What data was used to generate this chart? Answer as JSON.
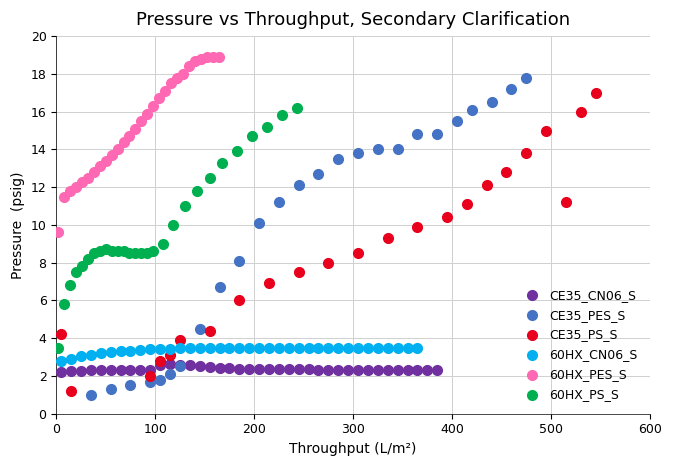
{
  "title": "Pressure vs Throughput, Secondary Clarification",
  "xlabel": "Throughput (L/m²)",
  "ylabel": "Pressure  (psig)",
  "xlim": [
    0,
    600
  ],
  "ylim": [
    0,
    20
  ],
  "xticks": [
    0,
    100,
    200,
    300,
    400,
    500,
    600
  ],
  "yticks": [
    0,
    2,
    4,
    6,
    8,
    10,
    12,
    14,
    16,
    18,
    20
  ],
  "series": {
    "CE35_CN06_S": {
      "color": "#7030A0",
      "x": [
        5,
        15,
        25,
        35,
        45,
        55,
        65,
        75,
        85,
        95,
        105,
        115,
        125,
        135,
        145,
        155,
        165,
        175,
        185,
        195,
        205,
        215,
        225,
        235,
        245,
        255,
        265,
        275,
        285,
        295,
        305,
        315,
        325,
        335,
        345,
        355,
        365,
        375,
        385
      ],
      "y": [
        2.2,
        2.25,
        2.25,
        2.3,
        2.3,
        2.3,
        2.3,
        2.3,
        2.3,
        2.3,
        2.6,
        2.65,
        2.6,
        2.55,
        2.5,
        2.45,
        2.4,
        2.4,
        2.35,
        2.35,
        2.35,
        2.35,
        2.35,
        2.35,
        2.35,
        2.35,
        2.3,
        2.3,
        2.3,
        2.3,
        2.3,
        2.3,
        2.3,
        2.3,
        2.3,
        2.3,
        2.3,
        2.3,
        2.3
      ]
    },
    "CE35_PES_S": {
      "color": "#4472C4",
      "x": [
        35,
        55,
        75,
        95,
        105,
        115,
        125,
        145,
        165,
        185,
        205,
        225,
        245,
        265,
        285,
        305,
        325,
        345,
        365,
        385,
        405,
        420,
        440,
        460,
        475
      ],
      "y": [
        1.0,
        1.3,
        1.5,
        1.7,
        1.8,
        2.1,
        2.5,
        4.5,
        6.7,
        8.1,
        10.1,
        11.2,
        12.1,
        12.7,
        13.5,
        13.8,
        14.0,
        14.0,
        14.8,
        14.8,
        15.5,
        16.1,
        16.5,
        17.2,
        17.8
      ]
    },
    "CE35_PS_S": {
      "color": "#E8001C",
      "x": [
        5,
        15,
        95,
        105,
        115,
        125,
        155,
        185,
        215,
        245,
        275,
        305,
        335,
        365,
        395,
        415,
        435,
        455,
        475,
        495,
        515,
        530,
        545
      ],
      "y": [
        4.2,
        1.2,
        2.0,
        2.8,
        3.1,
        3.9,
        4.4,
        6.0,
        6.9,
        7.5,
        8.0,
        8.5,
        9.3,
        9.9,
        10.4,
        11.1,
        12.1,
        12.8,
        13.8,
        15.0,
        11.2,
        16.0,
        17.0
      ]
    },
    "60HX_CN06_S": {
      "color": "#00B0F0",
      "x": [
        5,
        15,
        25,
        35,
        45,
        55,
        65,
        75,
        85,
        95,
        105,
        115,
        125,
        135,
        145,
        155,
        165,
        175,
        185,
        195,
        205,
        215,
        225,
        235,
        245,
        255,
        265,
        275,
        285,
        295,
        305,
        315,
        325,
        335,
        345,
        355,
        365
      ],
      "y": [
        2.8,
        2.9,
        3.05,
        3.1,
        3.2,
        3.25,
        3.3,
        3.3,
        3.35,
        3.4,
        3.4,
        3.45,
        3.5,
        3.5,
        3.5,
        3.5,
        3.5,
        3.5,
        3.5,
        3.5,
        3.5,
        3.5,
        3.5,
        3.5,
        3.5,
        3.5,
        3.5,
        3.5,
        3.5,
        3.5,
        3.5,
        3.5,
        3.5,
        3.5,
        3.5,
        3.5,
        3.5
      ]
    },
    "60HX_PES_S": {
      "color": "#FF69B4",
      "x": [
        2,
        8,
        14,
        20,
        26,
        32,
        38,
        44,
        50,
        56,
        62,
        68,
        74,
        80,
        86,
        92,
        98,
        104,
        110,
        116,
        122,
        128,
        134,
        140,
        146,
        152,
        158,
        164
      ],
      "y": [
        9.6,
        11.5,
        11.8,
        12.0,
        12.3,
        12.5,
        12.8,
        13.1,
        13.4,
        13.7,
        14.0,
        14.4,
        14.7,
        15.1,
        15.5,
        15.9,
        16.3,
        16.7,
        17.1,
        17.5,
        17.8,
        18.0,
        18.4,
        18.7,
        18.8,
        18.9,
        18.9,
        18.9
      ]
    },
    "60HX_PS_S": {
      "color": "#00B050",
      "x": [
        2,
        8,
        14,
        20,
        26,
        32,
        38,
        44,
        50,
        56,
        62,
        68,
        74,
        80,
        86,
        92,
        98,
        108,
        118,
        130,
        142,
        155,
        168,
        183,
        198,
        213,
        228,
        243
      ],
      "y": [
        3.5,
        5.8,
        6.8,
        7.5,
        7.8,
        8.2,
        8.5,
        8.6,
        8.7,
        8.6,
        8.6,
        8.6,
        8.5,
        8.5,
        8.5,
        8.5,
        8.6,
        9.0,
        10.0,
        11.0,
        11.8,
        12.5,
        13.3,
        13.9,
        14.7,
        15.2,
        15.8,
        16.2
      ]
    }
  },
  "legend_order": [
    "CE35_CN06_S",
    "CE35_PES_S",
    "CE35_PS_S",
    "60HX_CN06_S",
    "60HX_PES_S",
    "60HX_PS_S"
  ],
  "bg_color": "#FFFFFF",
  "grid_color": "#D0D0D0",
  "title_fontsize": 13,
  "label_fontsize": 10,
  "tick_fontsize": 9,
  "legend_fontsize": 9,
  "marker_size": 7
}
